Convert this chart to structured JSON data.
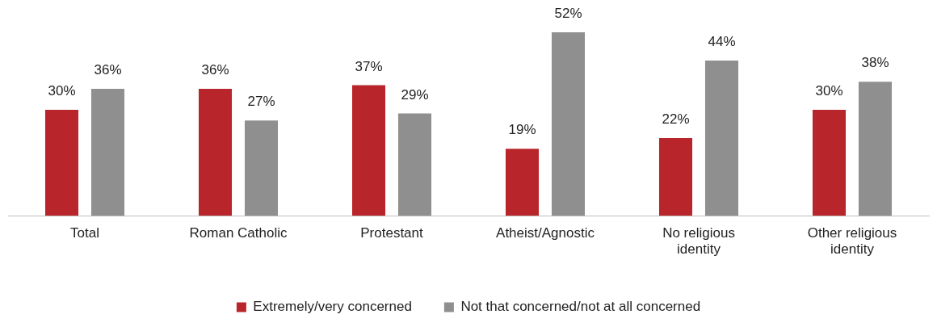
{
  "chart_data": {
    "type": "bar",
    "categories": [
      "Total",
      "Roman Catholic",
      "Protestant",
      "Atheist/Agnostic",
      "No religious identity",
      "Other religious identity"
    ],
    "series": [
      {
        "name": "Extremely/very concerned",
        "color": "#b8252a",
        "values": [
          30,
          36,
          37,
          19,
          22,
          30
        ],
        "value_labels": [
          "30%",
          "36%",
          "37%",
          "19%",
          "22%",
          "30%"
        ]
      },
      {
        "name": "Not that concerned/not at all concerned",
        "color": "#8f8f8f",
        "values": [
          36,
          27,
          29,
          52,
          44,
          38
        ],
        "value_labels": [
          "36%",
          "27%",
          "29%",
          "52%",
          "44%",
          "38%"
        ]
      }
    ],
    "legend": "bottom",
    "grid": false
  }
}
